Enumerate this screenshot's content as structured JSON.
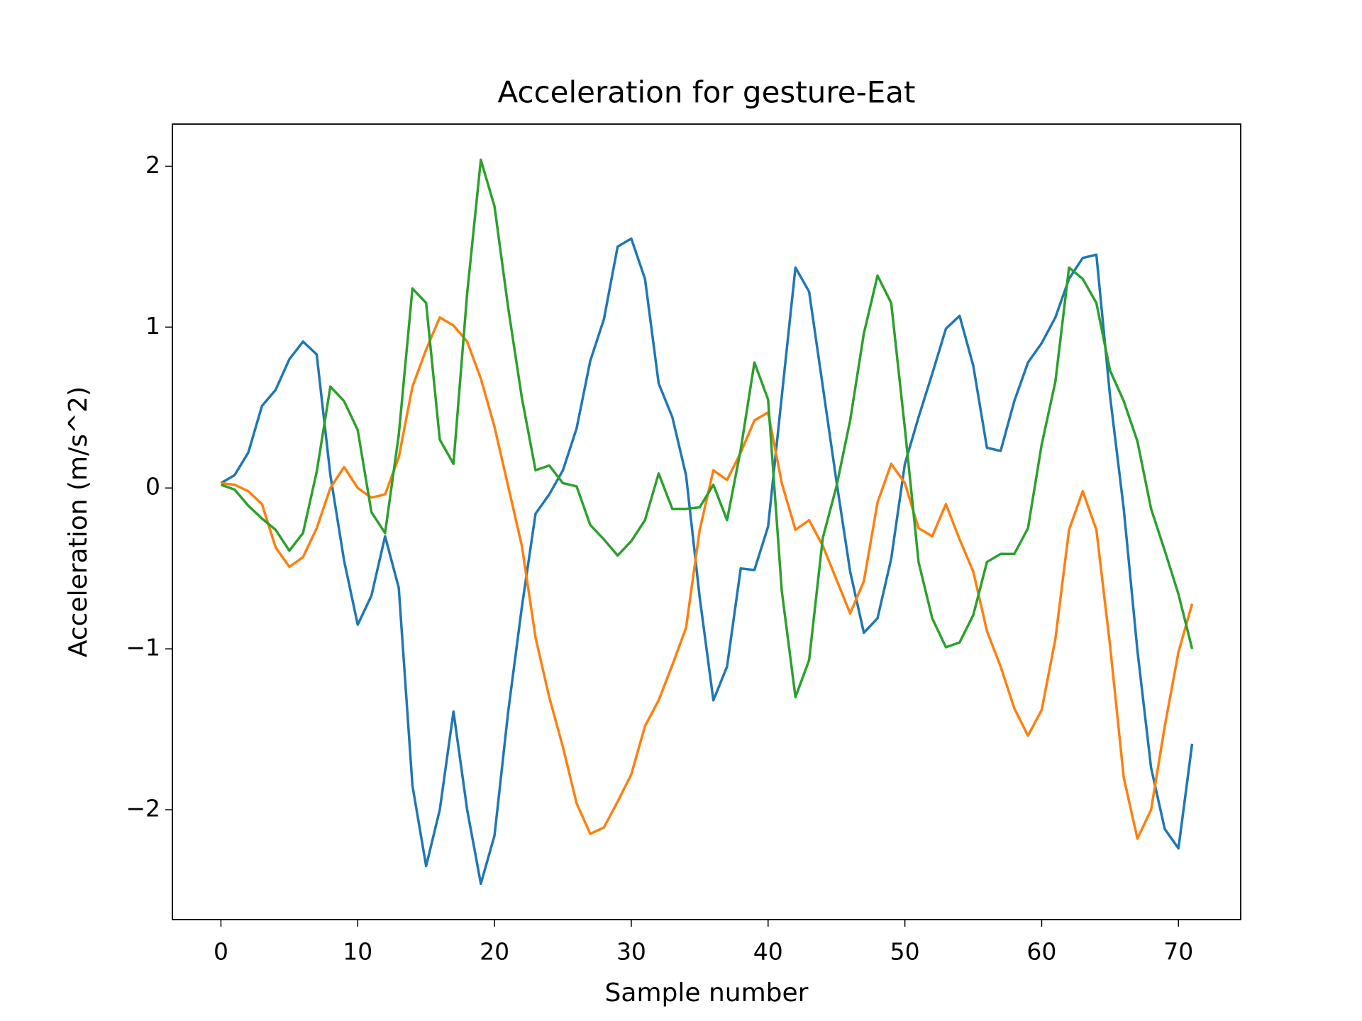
{
  "chart_data": {
    "type": "line",
    "title": "Acceleration for gesture-Eat",
    "xlabel": "Sample number",
    "ylabel": "Acceleration (m/s^2)",
    "x": [
      0,
      1,
      2,
      3,
      4,
      5,
      6,
      7,
      8,
      9,
      10,
      11,
      12,
      13,
      14,
      15,
      16,
      17,
      18,
      19,
      20,
      21,
      22,
      23,
      24,
      25,
      26,
      27,
      28,
      29,
      30,
      31,
      32,
      33,
      34,
      35,
      36,
      37,
      38,
      39,
      40,
      41,
      42,
      43,
      44,
      45,
      46,
      47,
      48,
      49,
      50,
      51,
      52,
      53,
      54,
      55,
      56,
      57,
      58,
      59,
      60,
      61,
      62,
      63,
      64,
      65,
      66,
      67,
      68,
      69,
      70,
      71
    ],
    "series": [
      {
        "color": "#1f77b4",
        "values": [
          0.03,
          0.08,
          0.22,
          0.51,
          0.61,
          0.8,
          0.91,
          0.83,
          0.08,
          -0.45,
          -0.85,
          -0.67,
          -0.3,
          -0.62,
          -1.85,
          -2.35,
          -2.0,
          -1.39,
          -2.0,
          -2.46,
          -2.16,
          -1.39,
          -0.74,
          -0.16,
          -0.04,
          0.11,
          0.37,
          0.79,
          1.05,
          1.5,
          1.55,
          1.3,
          0.65,
          0.44,
          0.08,
          -0.68,
          -1.32,
          -1.11,
          -0.5,
          -0.51,
          -0.24,
          0.57,
          1.37,
          1.22,
          0.63,
          0.04,
          -0.52,
          -0.9,
          -0.81,
          -0.44,
          0.15,
          0.44,
          0.71,
          0.99,
          1.07,
          0.76,
          0.25,
          0.23,
          0.54,
          0.78,
          0.9,
          1.06,
          1.3,
          1.43,
          1.45,
          0.57,
          -0.13,
          -1.01,
          -1.74,
          -2.12,
          -2.24,
          -1.59
        ]
      },
      {
        "color": "#ff7f0e",
        "values": [
          0.03,
          0.02,
          -0.02,
          -0.1,
          -0.37,
          -0.49,
          -0.43,
          -0.25,
          0.0,
          0.13,
          0.0,
          -0.06,
          -0.04,
          0.19,
          0.63,
          0.86,
          1.06,
          1.01,
          0.91,
          0.68,
          0.38,
          0.01,
          -0.36,
          -0.93,
          -1.3,
          -1.61,
          -1.96,
          -2.15,
          -2.11,
          -1.95,
          -1.78,
          -1.48,
          -1.32,
          -1.1,
          -0.87,
          -0.26,
          0.11,
          0.05,
          0.22,
          0.42,
          0.47,
          0.03,
          -0.26,
          -0.2,
          -0.36,
          -0.57,
          -0.78,
          -0.58,
          -0.09,
          0.15,
          0.03,
          -0.25,
          -0.3,
          -0.1,
          -0.32,
          -0.52,
          -0.89,
          -1.11,
          -1.37,
          -1.54,
          -1.38,
          -0.94,
          -0.26,
          -0.02,
          -0.26,
          -0.98,
          -1.8,
          -2.18,
          -2.0,
          -1.48,
          -1.02,
          -0.72
        ]
      },
      {
        "color": "#2ca02c",
        "values": [
          0.02,
          -0.01,
          -0.11,
          -0.19,
          -0.26,
          -0.39,
          -0.28,
          0.1,
          0.63,
          0.54,
          0.36,
          -0.15,
          -0.28,
          0.33,
          1.24,
          1.15,
          0.3,
          0.15,
          1.21,
          2.04,
          1.75,
          1.12,
          0.56,
          0.11,
          0.14,
          0.03,
          0.01,
          -0.23,
          -0.32,
          -0.42,
          -0.33,
          -0.2,
          0.09,
          -0.13,
          -0.13,
          -0.12,
          0.02,
          -0.2,
          0.24,
          0.78,
          0.55,
          -0.64,
          -1.3,
          -1.07,
          -0.31,
          0.01,
          0.42,
          0.96,
          1.32,
          1.15,
          0.37,
          -0.46,
          -0.81,
          -0.99,
          -0.96,
          -0.79,
          -0.46,
          -0.41,
          -0.41,
          -0.25,
          0.27,
          0.66,
          1.37,
          1.3,
          1.15,
          0.73,
          0.54,
          0.29,
          -0.13,
          -0.39,
          -0.66,
          -1.0
        ]
      }
    ],
    "xlim": [
      -3.55,
      74.55
    ],
    "xticks": [
      0,
      10,
      20,
      30,
      40,
      50,
      60,
      70
    ],
    "ylim": [
      -2.683,
      2.262
    ],
    "yticks": [
      {
        "value": -2,
        "label": "−2"
      },
      {
        "value": -1,
        "label": "−1"
      },
      0,
      1,
      2
    ],
    "grid": false
  }
}
